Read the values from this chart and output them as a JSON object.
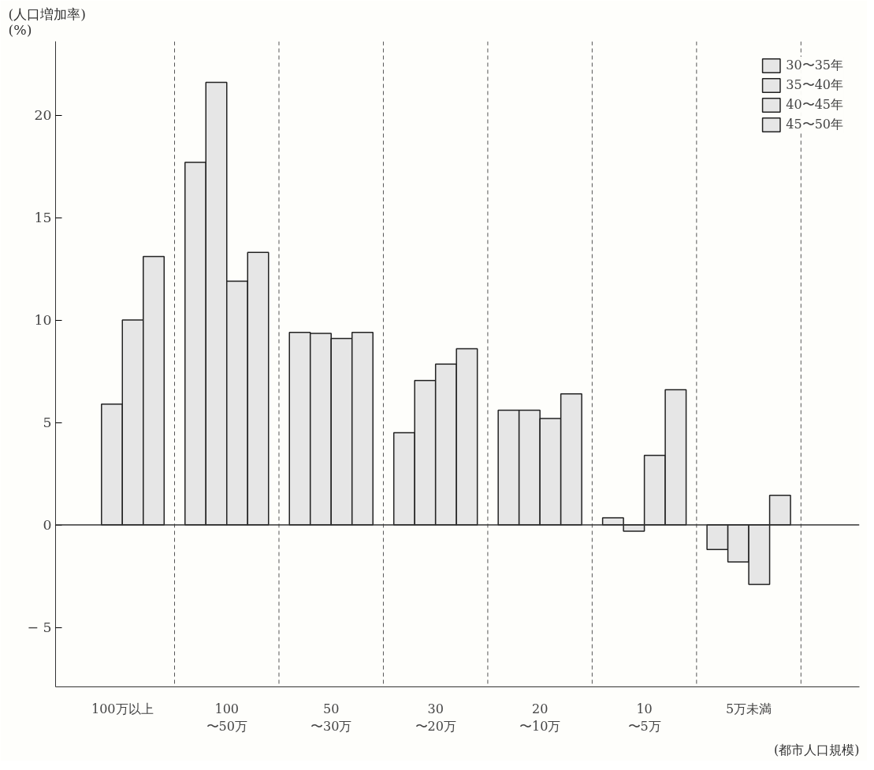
{
  "chart_data": {
    "type": "bar",
    "ylabel": "(人口増加率)\n(%)",
    "xlabel": "(都市人口規模)",
    "categories": [
      "100万以上",
      "100\n〜50万",
      "50\n〜30万",
      "30\n〜20万",
      "20\n〜10万",
      "10\n〜5万",
      "5万未満"
    ],
    "series": [
      {
        "name": "30〜35年",
        "color": "#e6e6e6",
        "values": [
          null,
          17.7,
          9.4,
          4.5,
          5.6,
          0.35,
          -1.2
        ]
      },
      {
        "name": "35〜40年",
        "color": "#e6e6e6",
        "values": [
          5.9,
          21.6,
          9.35,
          7.05,
          5.6,
          -0.3,
          -1.8
        ]
      },
      {
        "name": "40〜45年",
        "color": "#e6e6e6",
        "values": [
          10.0,
          11.9,
          9.1,
          7.85,
          5.2,
          3.4,
          -2.9
        ]
      },
      {
        "name": "45〜50年",
        "color": "#e6e6e6",
        "values": [
          13.1,
          13.3,
          9.4,
          8.6,
          6.4,
          6.6,
          1.45
        ]
      }
    ],
    "ylim": [
      -7.9,
      23.6
    ],
    "yticks": [
      {
        "value": -5,
        "label": "− 5"
      },
      0,
      5,
      10,
      15,
      20
    ],
    "ref_lines": [
      {
        "axis": "y",
        "value": 0
      }
    ],
    "grid": "x",
    "legend": "top right"
  }
}
